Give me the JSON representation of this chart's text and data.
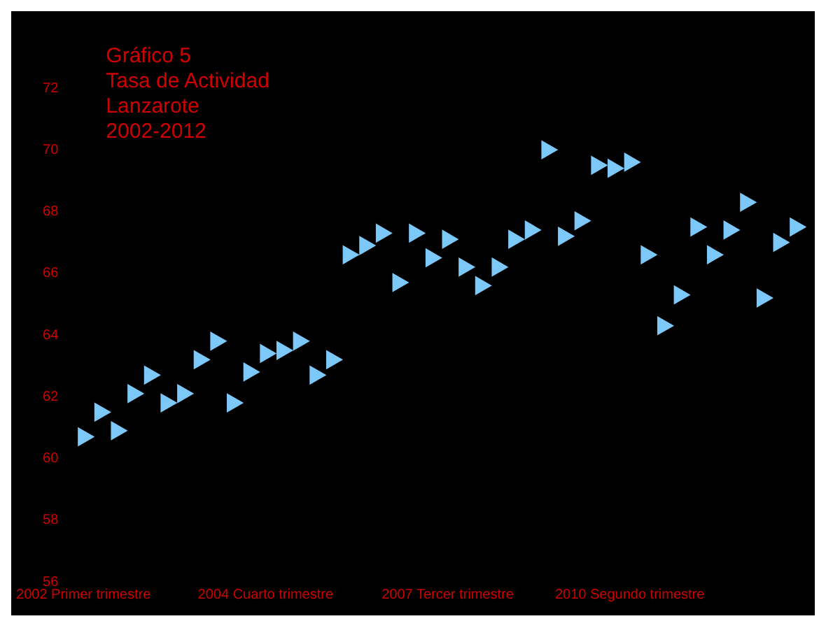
{
  "chart_data": {
    "type": "scatter",
    "title": "Gráfico 5\nTasa de Actividad\nLanzarote\n2002-2012",
    "categories": [
      "2002 Primer trimestre",
      null,
      null,
      null,
      null,
      null,
      null,
      null,
      null,
      null,
      null,
      "2004 Cuarto trimestre",
      null,
      null,
      null,
      null,
      null,
      null,
      null,
      null,
      null,
      null,
      "2007 Tercer trimestre",
      null,
      null,
      null,
      null,
      null,
      null,
      null,
      null,
      null,
      null,
      "2010 Segundo trimestre",
      null,
      null,
      null,
      null,
      null,
      null,
      null,
      null,
      null,
      null
    ],
    "series": [
      {
        "color": "#7cc8f8",
        "values": [
          60.7,
          61.5,
          60.9,
          62.1,
          62.7,
          61.8,
          62.1,
          63.2,
          63.8,
          61.8,
          62.8,
          63.4,
          63.5,
          63.8,
          62.7,
          63.2,
          66.6,
          66.9,
          67.3,
          65.7,
          67.3,
          66.5,
          67.1,
          66.2,
          65.6,
          66.2,
          67.1,
          67.4,
          70.0,
          67.2,
          67.7,
          69.5,
          69.4,
          69.6,
          66.6,
          64.3,
          65.3,
          67.5,
          66.6,
          67.4,
          68.3,
          65.2,
          67.0,
          67.5
        ]
      }
    ],
    "ylim": [
      56,
      72
    ],
    "yticks": [
      56,
      58,
      60,
      62,
      64,
      66,
      68,
      70,
      72
    ],
    "legend": false,
    "marker": "triangle"
  }
}
